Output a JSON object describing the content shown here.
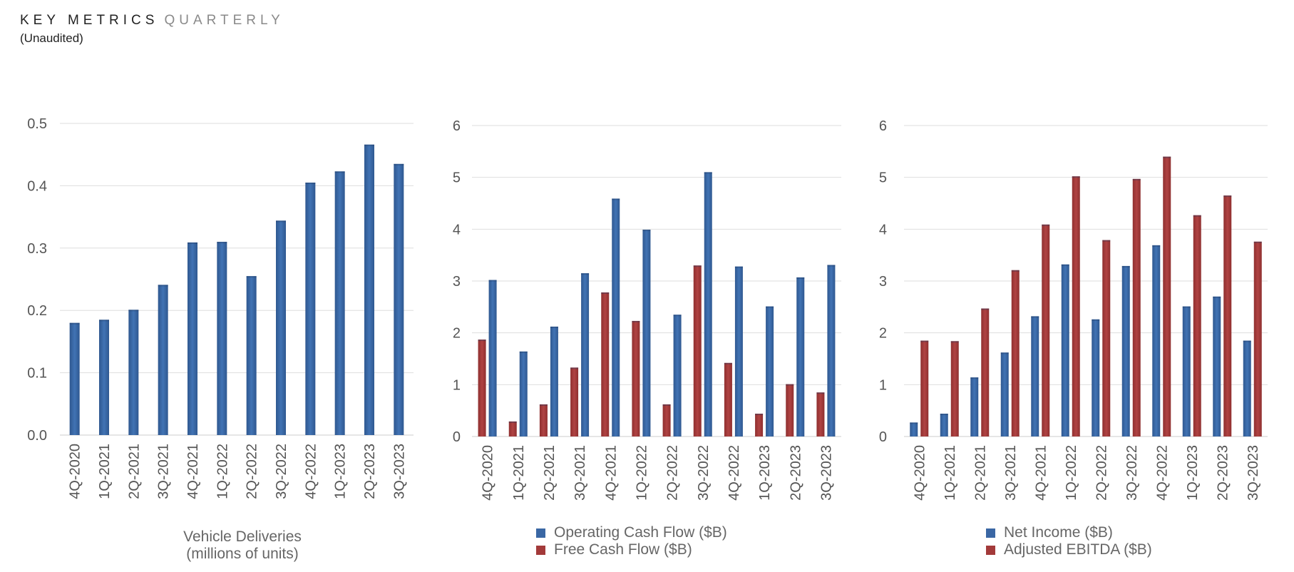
{
  "header": {
    "title": "KEY METRICS",
    "title_suffix": "QUARTERLY",
    "subtitle": "(Unaudited)"
  },
  "colors": {
    "blue": "#3a67a4",
    "red": "#a33a3a",
    "grid": "#dedede",
    "axis": "#cccccc"
  },
  "chart_data": [
    {
      "type": "bar",
      "categories": [
        "4Q-2020",
        "1Q-2021",
        "2Q-2021",
        "3Q-2021",
        "4Q-2021",
        "1Q-2022",
        "2Q-2022",
        "3Q-2022",
        "4Q-2022",
        "1Q-2023",
        "2Q-2023",
        "3Q-2023"
      ],
      "series": [
        {
          "name": "",
          "values": [
            0.18,
            0.185,
            0.201,
            0.241,
            0.309,
            0.31,
            0.255,
            0.344,
            0.405,
            0.423,
            0.466,
            0.435
          ]
        }
      ],
      "yticks": [
        "0.0",
        "0.1",
        "0.2",
        "0.3",
        "0.4",
        "0.5"
      ],
      "ylim": [
        0,
        0.5
      ],
      "caption_lines": [
        "Vehicle Deliveries",
        "(millions of units)"
      ]
    },
    {
      "type": "bar",
      "categories": [
        "4Q-2020",
        "1Q-2021",
        "2Q-2021",
        "3Q-2021",
        "4Q-2021",
        "1Q-2022",
        "2Q-2022",
        "3Q-2022",
        "4Q-2022",
        "1Q-2023",
        "2Q-2023",
        "3Q-2023"
      ],
      "series": [
        {
          "name": "Free Cash Flow ($B)",
          "values": [
            1.87,
            0.29,
            0.62,
            1.33,
            2.78,
            2.23,
            0.62,
            3.3,
            1.42,
            0.44,
            1.01,
            0.85
          ]
        },
        {
          "name": "Operating Cash Flow ($B)",
          "values": [
            3.02,
            1.64,
            2.12,
            3.15,
            4.59,
            3.99,
            2.35,
            5.1,
            3.28,
            2.51,
            3.07,
            3.31
          ]
        }
      ],
      "yticks": [
        "0",
        "1",
        "2",
        "3",
        "4",
        "5",
        "6"
      ],
      "ylim": [
        0,
        6
      ],
      "legend": [
        "Operating Cash Flow ($B)",
        "Free Cash Flow ($B)"
      ]
    },
    {
      "type": "bar",
      "categories": [
        "4Q-2020",
        "1Q-2021",
        "2Q-2021",
        "3Q-2021",
        "4Q-2021",
        "1Q-2022",
        "2Q-2022",
        "3Q-2022",
        "4Q-2022",
        "1Q-2023",
        "2Q-2023",
        "3Q-2023"
      ],
      "series": [
        {
          "name": "Net Income ($B)",
          "values": [
            0.27,
            0.44,
            1.14,
            1.62,
            2.32,
            3.32,
            2.26,
            3.29,
            3.69,
            2.51,
            2.7,
            1.85
          ]
        },
        {
          "name": "Adjusted EBITDA ($B)",
          "values": [
            1.85,
            1.84,
            2.47,
            3.21,
            4.09,
            5.02,
            3.79,
            4.97,
            5.4,
            4.27,
            4.65,
            3.76
          ]
        }
      ],
      "yticks": [
        "0",
        "1",
        "2",
        "3",
        "4",
        "5",
        "6"
      ],
      "ylim": [
        0,
        6
      ],
      "legend": [
        "Net Income ($B)",
        "Adjusted EBITDA ($B)"
      ]
    }
  ]
}
